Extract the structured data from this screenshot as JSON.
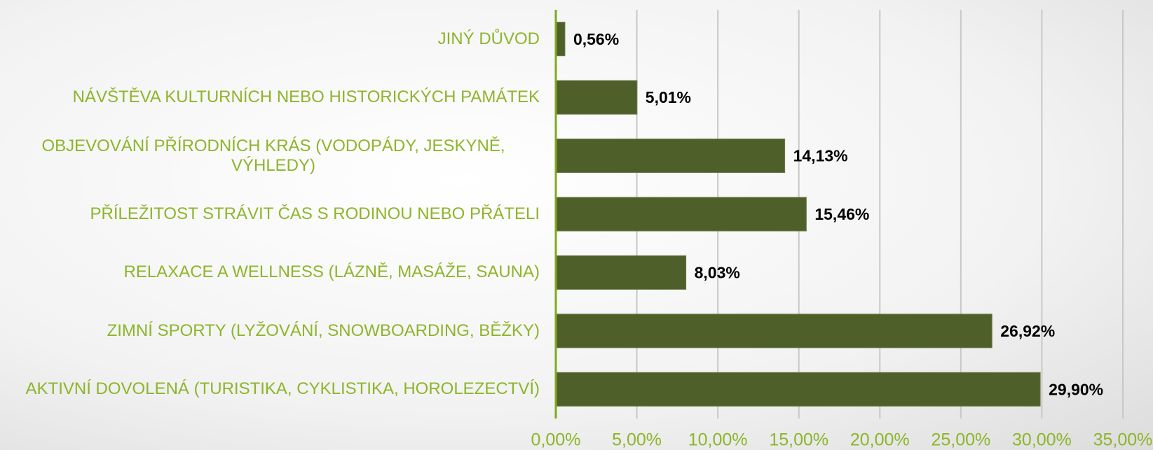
{
  "chart_data": {
    "type": "barh",
    "categories": [
      "JINÝ DŮVOD",
      "NÁVŠTĚVA KULTURNÍCH NEBO HISTORICKÝCH PAMÁTEK",
      "OBJEVOVÁNÍ PŘÍRODNÍCH KRÁS (VODOPÁDY, JESKYNĚ, VÝHLEDY)",
      "PŘÍLEŽITOST STRÁVIT ČAS S RODINOU NEBO PŘÁTELI",
      "RELAXACE A WELLNESS (LÁZNĚ, MASÁŽE, SAUNA)",
      "ZIMNÍ SPORTY (LYŽOVÁNÍ, SNOWBOARDING, BĚŽKY)",
      "AKTIVNÍ DOVOLENÁ (TURISTIKA, CYKLISTIKA, HOROLEZECTVÍ)"
    ],
    "values": [
      0.56,
      5.01,
      14.13,
      15.46,
      8.03,
      26.92,
      29.9
    ],
    "value_labels": [
      "0,56%",
      "5,01%",
      "14,13%",
      "15,46%",
      "8,03%",
      "26,92%",
      "29,90%"
    ],
    "color": "#4f5f2a",
    "xlim": [
      0,
      35
    ],
    "xticks": [
      {
        "value": 0,
        "label": "0,00%"
      },
      {
        "value": 5,
        "label": "5,00%"
      },
      {
        "value": 10,
        "label": "10,00%"
      },
      {
        "value": 15,
        "label": "15,00%"
      },
      {
        "value": 20,
        "label": "20,00%"
      },
      {
        "value": 25,
        "label": "25,00%"
      },
      {
        "value": 30,
        "label": "30,00%"
      },
      {
        "value": 35,
        "label": "35,00%"
      }
    ],
    "grid": true
  }
}
